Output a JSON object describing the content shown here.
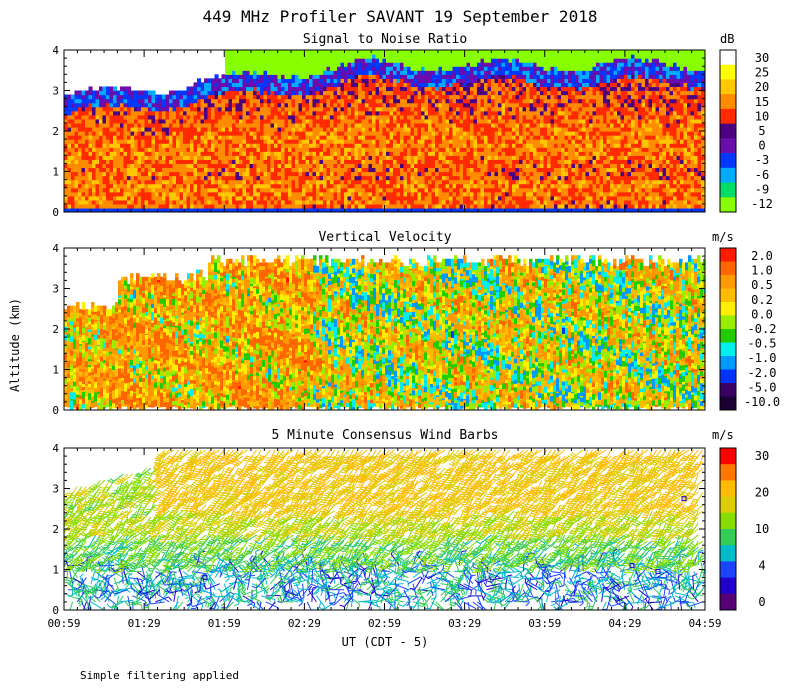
{
  "title": "449 MHz Profiler SAVANT 19 September 2018",
  "footnote": "Simple filtering applied",
  "shared_ylabel": "Altitude (km)",
  "xlabel": "UT (CDT - 5)",
  "chart_data": [
    {
      "type": "heatmap",
      "title": "Signal to Noise Ratio",
      "unit": "dB",
      "x_ticks": [
        "00:59",
        "01:29",
        "01:59",
        "02:29",
        "02:59",
        "03:29",
        "03:59",
        "04:29",
        "04:59"
      ],
      "y_ticks": [
        "0",
        "1",
        "2",
        "3",
        "4"
      ],
      "ylim": [
        0,
        4
      ],
      "colorbar": {
        "labels": [
          "30",
          "25",
          "20",
          "15",
          "10",
          "5",
          "0",
          "-3",
          "-6",
          "-9",
          "-12"
        ],
        "colors": [
          "#ffffff",
          "#ffff00",
          "#ffc800",
          "#ff8c00",
          "#ff2a00",
          "#4b0082",
          "#6a0dad",
          "#0038ff",
          "#00aaff",
          "#00dd66",
          "#88ff00"
        ]
      }
    },
    {
      "type": "heatmap",
      "title": "Vertical Velocity",
      "unit": "m/s",
      "x_ticks": [
        "00:59",
        "01:29",
        "01:59",
        "02:29",
        "02:59",
        "03:29",
        "03:59",
        "04:29",
        "04:59"
      ],
      "y_ticks": [
        "0",
        "1",
        "2",
        "3",
        "4"
      ],
      "ylim": [
        0,
        4
      ],
      "colorbar": {
        "labels": [
          "2.0",
          "1.0",
          "0.5",
          "0.2",
          "0.0",
          "-0.2",
          "-0.5",
          "-1.0",
          "-2.0",
          "-5.0",
          "-10.0"
        ],
        "colors": [
          "#ff1a00",
          "#ff6600",
          "#ff9900",
          "#ffbb00",
          "#ffee00",
          "#99ee00",
          "#22cc00",
          "#00eeee",
          "#0099ff",
          "#0033ff",
          "#3a0066",
          "#1a0033"
        ]
      }
    },
    {
      "type": "scatter",
      "title": "5 Minute Consensus Wind Barbs",
      "unit": "m/s",
      "x_ticks": [
        "00:59",
        "01:29",
        "01:59",
        "02:29",
        "02:59",
        "03:29",
        "03:59",
        "04:29",
        "04:59"
      ],
      "y_ticks": [
        "0",
        "1",
        "2",
        "3",
        "4"
      ],
      "ylim": [
        0,
        4
      ],
      "colorbar": {
        "labels": [
          "30",
          "20",
          "10",
          "4",
          "0"
        ],
        "colors": [
          "#ff0000",
          "#ff7700",
          "#ffbb00",
          "#ddcc00",
          "#88dd00",
          "#33cc55",
          "#00bbcc",
          "#1a44ff",
          "#2200cc",
          "#550077"
        ]
      }
    }
  ]
}
